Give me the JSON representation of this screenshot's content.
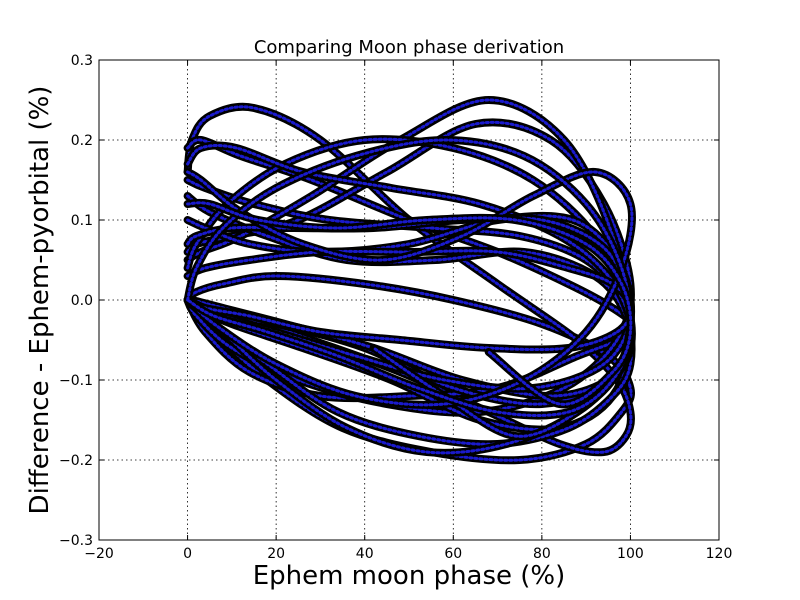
{
  "chart_data": {
    "type": "scatter",
    "title": "Comparing Moon phase derivation",
    "xlabel": "Ephem moon phase (%)",
    "ylabel": "Difference - Ephem-pyorbital (%)",
    "xlim": [
      -20,
      120
    ],
    "ylim": [
      -0.3,
      0.3
    ],
    "xticks": [
      -20,
      0,
      20,
      40,
      60,
      80,
      100,
      120
    ],
    "yticks": [
      -0.3,
      -0.2,
      -0.1,
      0.0,
      0.1,
      0.2,
      0.3
    ],
    "xtick_labels": [
      "−20",
      "0",
      "20",
      "40",
      "60",
      "80",
      "100",
      "120"
    ],
    "ytick_labels": [
      "−0.3",
      "−0.2",
      "−0.1",
      "0.0",
      "0.1",
      "0.2",
      "0.3"
    ],
    "grid": true,
    "marker_edge_color": "#000000",
    "marker_face_color": "#1a1acc",
    "series": [
      {
        "x": [
          0,
          2,
          8,
          20,
          40,
          60,
          80,
          95,
          100,
          98,
          90,
          75,
          55,
          35,
          18,
          6,
          1,
          0
        ],
        "y": [
          0.0,
          0.01,
          0.02,
          0.03,
          0.02,
          0.0,
          -0.03,
          -0.07,
          -0.11,
          -0.14,
          -0.18,
          -0.2,
          -0.19,
          -0.16,
          -0.1,
          -0.04,
          -0.01,
          0.0
        ]
      },
      {
        "x": [
          0,
          1,
          5,
          15,
          30,
          50,
          70,
          88,
          97,
          100,
          99,
          94,
          84,
          68,
          48,
          28,
          12,
          3,
          0
        ],
        "y": [
          0.16,
          0.2,
          0.23,
          0.24,
          0.2,
          0.1,
          0.02,
          -0.05,
          -0.1,
          -0.14,
          -0.17,
          -0.19,
          -0.18,
          -0.14,
          -0.09,
          -0.05,
          -0.02,
          -0.01,
          0.0
        ]
      },
      {
        "x": [
          0,
          3,
          12,
          28,
          50,
          70,
          86,
          96,
          100,
          97,
          88,
          70,
          50,
          30,
          14,
          4,
          0
        ],
        "y": [
          0.19,
          0.2,
          0.18,
          0.15,
          0.1,
          0.06,
          0.02,
          -0.01,
          -0.03,
          -0.05,
          -0.07,
          -0.11,
          -0.12,
          -0.12,
          -0.09,
          -0.04,
          0.0
        ]
      },
      {
        "x": [
          0,
          2,
          10,
          25,
          45,
          65,
          82,
          94,
          100,
          97,
          85,
          66,
          45,
          25,
          10,
          2,
          0
        ],
        "y": [
          0.06,
          0.07,
          0.08,
          0.1,
          0.16,
          0.22,
          0.2,
          0.12,
          0.02,
          -0.05,
          -0.11,
          -0.14,
          -0.13,
          -0.1,
          -0.06,
          -0.02,
          0.0
        ]
      },
      {
        "x": [
          0,
          4,
          15,
          32,
          55,
          75,
          90,
          98,
          100,
          95,
          80,
          60,
          40,
          20,
          6,
          0
        ],
        "y": [
          0.15,
          0.14,
          0.12,
          0.1,
          0.09,
          0.08,
          0.05,
          0.0,
          -0.05,
          -0.1,
          -0.13,
          -0.11,
          -0.06,
          -0.03,
          -0.02,
          0.0
        ]
      },
      {
        "x": [
          0,
          3,
          12,
          28,
          48,
          68,
          85,
          96,
          100,
          96,
          84,
          66,
          46,
          26,
          10,
          2,
          0
        ],
        "y": [
          0.05,
          0.06,
          0.08,
          0.13,
          0.2,
          0.25,
          0.2,
          0.08,
          -0.04,
          -0.12,
          -0.16,
          -0.15,
          -0.1,
          -0.06,
          -0.03,
          -0.01,
          0.0
        ]
      },
      {
        "x": [
          0,
          5,
          18,
          36,
          56,
          76,
          92,
          99,
          100,
          96,
          86,
          70,
          52,
          34,
          18,
          6,
          0
        ],
        "y": [
          0.13,
          0.11,
          0.08,
          0.05,
          0.05,
          0.06,
          0.03,
          -0.02,
          -0.08,
          -0.12,
          -0.16,
          -0.18,
          -0.17,
          -0.14,
          -0.08,
          -0.03,
          0.0
        ]
      },
      {
        "x": [
          0,
          2,
          9,
          22,
          40,
          60,
          78,
          92,
          99,
          100,
          95,
          82,
          62,
          42,
          22,
          8,
          1,
          0
        ],
        "y": [
          0.04,
          0.07,
          0.12,
          0.17,
          0.2,
          0.19,
          0.15,
          0.08,
          0.0,
          -0.06,
          -0.1,
          -0.12,
          -0.1,
          -0.06,
          -0.03,
          -0.01,
          0.0,
          0.0
        ]
      },
      {
        "x": [
          0,
          4,
          14,
          30,
          50,
          70,
          87,
          97,
          100,
          94,
          78,
          58,
          38,
          20,
          8,
          0
        ],
        "y": [
          0.1,
          0.09,
          0.07,
          0.06,
          0.07,
          0.1,
          0.1,
          0.05,
          -0.02,
          -0.08,
          -0.11,
          -0.1,
          -0.07,
          -0.04,
          -0.02,
          0.0
        ]
      },
      {
        "x": [
          0,
          3,
          11,
          26,
          46,
          66,
          84,
          95,
          100,
          98,
          88,
          72,
          54,
          36,
          20,
          8,
          0
        ],
        "y": [
          0.17,
          0.19,
          0.19,
          0.16,
          0.14,
          0.12,
          0.08,
          0.03,
          -0.03,
          -0.08,
          -0.14,
          -0.18,
          -0.19,
          -0.16,
          -0.1,
          -0.04,
          0.0
        ]
      },
      {
        "x": [
          0,
          2,
          10,
          24,
          42,
          62,
          80,
          93,
          99,
          100,
          97,
          88,
          74,
          58,
          42
        ],
        "y": [
          0.07,
          0.08,
          0.09,
          0.09,
          0.09,
          0.1,
          0.1,
          0.07,
          0.02,
          -0.03,
          -0.09,
          -0.14,
          -0.17,
          -0.12,
          -0.06
        ]
      },
      {
        "x": [
          0,
          4,
          14,
          30,
          50,
          70,
          86,
          96,
          100,
          97,
          86,
          68,
          48,
          30,
          14,
          4,
          0
        ],
        "y": [
          0.03,
          0.04,
          0.05,
          0.06,
          0.06,
          0.06,
          0.04,
          0.02,
          -0.01,
          -0.04,
          -0.06,
          -0.06,
          -0.05,
          -0.04,
          -0.02,
          -0.01,
          0.0
        ]
      },
      {
        "x": [
          0,
          3,
          12,
          26,
          44,
          62,
          78,
          92,
          100,
          98,
          90,
          76,
          58,
          38,
          20,
          6,
          0
        ],
        "y": [
          0.16,
          0.15,
          0.11,
          0.07,
          0.05,
          0.08,
          0.13,
          0.16,
          0.12,
          0.04,
          -0.04,
          -0.1,
          -0.13,
          -0.12,
          -0.08,
          -0.03,
          0.0
        ]
      },
      {
        "x": [
          0,
          2,
          8,
          20,
          38,
          58,
          76,
          90,
          98,
          100,
          96,
          86,
          70,
          52,
          34,
          18,
          6,
          0
        ],
        "y": [
          0.0,
          0.04,
          0.09,
          0.14,
          0.18,
          0.2,
          0.18,
          0.12,
          0.04,
          -0.04,
          -0.1,
          -0.14,
          -0.14,
          -0.11,
          -0.07,
          -0.04,
          -0.02,
          0.0
        ]
      },
      {
        "x": [
          0,
          5,
          16,
          34,
          54,
          74,
          90,
          98,
          100,
          96,
          84,
          68
        ],
        "y": [
          0.12,
          0.12,
          0.1,
          0.09,
          0.1,
          0.1,
          0.07,
          0.02,
          -0.04,
          -0.09,
          -0.13,
          -0.065
        ]
      }
    ]
  }
}
